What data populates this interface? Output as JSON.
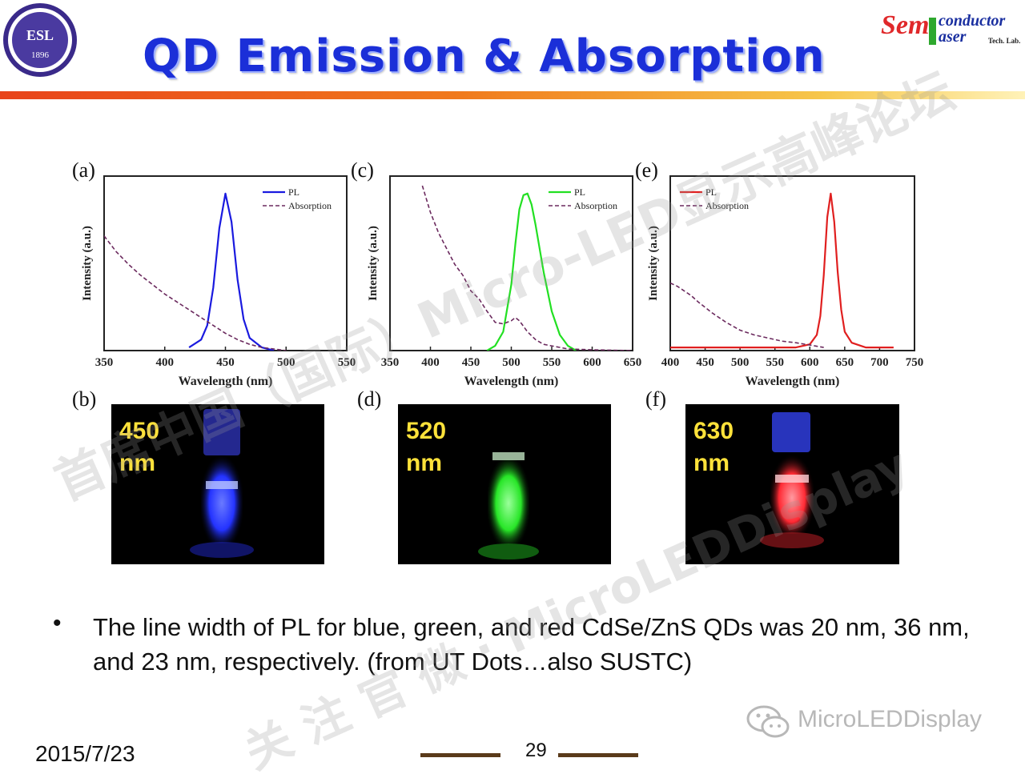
{
  "slide": {
    "title": "QD Emission & Absorption",
    "logo_right": {
      "part1": "Sem",
      "part2": "conductor",
      "part3": "aser",
      "part4": "Tech. Lab."
    },
    "logo_left": {
      "letters": "ESL",
      "year": "1896"
    },
    "bullet": "The line width of PL for blue, green, and red CdSe/ZnS QDs was 20 nm, 36 nm, and 23 nm, respectively. (from UT Dots…also SUSTC)",
    "date": "2015/7/23",
    "page_number": "29",
    "watermark_account": "MicroLEDDisplay",
    "watermark_overlay": [
      "首席中国（国际）Micro-LED显示高峰论坛",
      "关 注 官 微 · MicroLEDDisplay"
    ]
  },
  "colors": {
    "title": "#1b2fd8",
    "header_bar_start": "#e8431a",
    "header_bar_end": "#fff2b8",
    "photo_label": "#ffe23a",
    "absorption": "#6b2a5e",
    "pl_blue": "#1a1adf",
    "pl_green": "#22e022",
    "pl_red": "#e01f1f"
  },
  "panels": {
    "a": "(a)",
    "b": "(b)",
    "c": "(c)",
    "d": "(d)",
    "e": "(e)",
    "f": "(f)"
  },
  "photos": [
    {
      "label": "450\nnm",
      "glow": "#2433ff"
    },
    {
      "label": "520\nnm",
      "glow": "#28e628"
    },
    {
      "label": "630\nnm",
      "glow": "#ff2a34"
    }
  ],
  "chart_data": [
    {
      "type": "line",
      "xlabel": "Wavelength (nm)",
      "ylabel": "Intensity (a.u.)",
      "xlim": [
        350,
        550
      ],
      "xticks": [
        350,
        400,
        450,
        500,
        550
      ],
      "legend": [
        "PL",
        "Absorption"
      ],
      "legend_position": "top-right",
      "series": [
        {
          "name": "PL",
          "peak": 450,
          "fwhm": 20,
          "x": [
            420,
            430,
            435,
            440,
            445,
            450,
            455,
            460,
            465,
            470,
            480,
            490
          ],
          "y": [
            0.02,
            0.07,
            0.16,
            0.4,
            0.78,
            1.0,
            0.82,
            0.45,
            0.2,
            0.08,
            0.02,
            0.0
          ]
        },
        {
          "name": "Absorption",
          "x": [
            350,
            360,
            370,
            380,
            390,
            400,
            410,
            420,
            430,
            440,
            450,
            460,
            470,
            480,
            490,
            500
          ],
          "y": [
            0.73,
            0.63,
            0.55,
            0.48,
            0.42,
            0.36,
            0.31,
            0.26,
            0.21,
            0.16,
            0.11,
            0.07,
            0.04,
            0.02,
            0.01,
            0.0
          ]
        }
      ]
    },
    {
      "type": "line",
      "xlabel": "Wavelength (nm)",
      "ylabel": "Intensity (a.u.)",
      "xlim": [
        350,
        650
      ],
      "xticks": [
        350,
        400,
        450,
        500,
        550,
        600,
        650
      ],
      "legend": [
        "PL",
        "Absorption"
      ],
      "legend_position": "top-right",
      "series": [
        {
          "name": "PL",
          "peak": 520,
          "fwhm": 36,
          "x": [
            470,
            480,
            490,
            500,
            505,
            510,
            515,
            520,
            525,
            530,
            540,
            550,
            560,
            570,
            580
          ],
          "y": [
            0.0,
            0.03,
            0.12,
            0.42,
            0.68,
            0.9,
            0.99,
            1.0,
            0.93,
            0.8,
            0.5,
            0.25,
            0.1,
            0.03,
            0.0
          ]
        },
        {
          "name": "Absorption",
          "x": [
            390,
            400,
            410,
            420,
            430,
            440,
            450,
            460,
            470,
            480,
            490,
            500,
            505,
            510,
            520,
            530,
            540,
            550,
            570,
            600,
            650
          ],
          "y": [
            1.05,
            0.88,
            0.75,
            0.65,
            0.55,
            0.48,
            0.38,
            0.33,
            0.25,
            0.18,
            0.17,
            0.19,
            0.21,
            0.19,
            0.12,
            0.07,
            0.04,
            0.03,
            0.01,
            0.005,
            0.0
          ]
        }
      ]
    },
    {
      "type": "line",
      "xlabel": "Wavelength (nm)",
      "ylabel": "Intensity (a.u.)",
      "xlim": [
        400,
        750
      ],
      "xticks": [
        400,
        450,
        500,
        550,
        600,
        650,
        700,
        750
      ],
      "legend": [
        "PL",
        "Absorption"
      ],
      "legend_position": "top-left",
      "series": [
        {
          "name": "PL",
          "peak": 630,
          "fwhm": 23,
          "x": [
            400,
            500,
            580,
            600,
            610,
            615,
            620,
            625,
            630,
            635,
            640,
            645,
            650,
            660,
            680,
            700,
            720
          ],
          "y": [
            0.02,
            0.02,
            0.02,
            0.04,
            0.1,
            0.22,
            0.48,
            0.85,
            1.0,
            0.82,
            0.5,
            0.26,
            0.12,
            0.05,
            0.02,
            0.02,
            0.02
          ]
        },
        {
          "name": "Absorption",
          "x": [
            400,
            410,
            420,
            430,
            440,
            460,
            480,
            500,
            520,
            540,
            560,
            580,
            600,
            620
          ],
          "y": [
            0.43,
            0.41,
            0.38,
            0.35,
            0.31,
            0.24,
            0.18,
            0.13,
            0.1,
            0.08,
            0.06,
            0.05,
            0.035,
            0.02
          ]
        }
      ]
    }
  ]
}
